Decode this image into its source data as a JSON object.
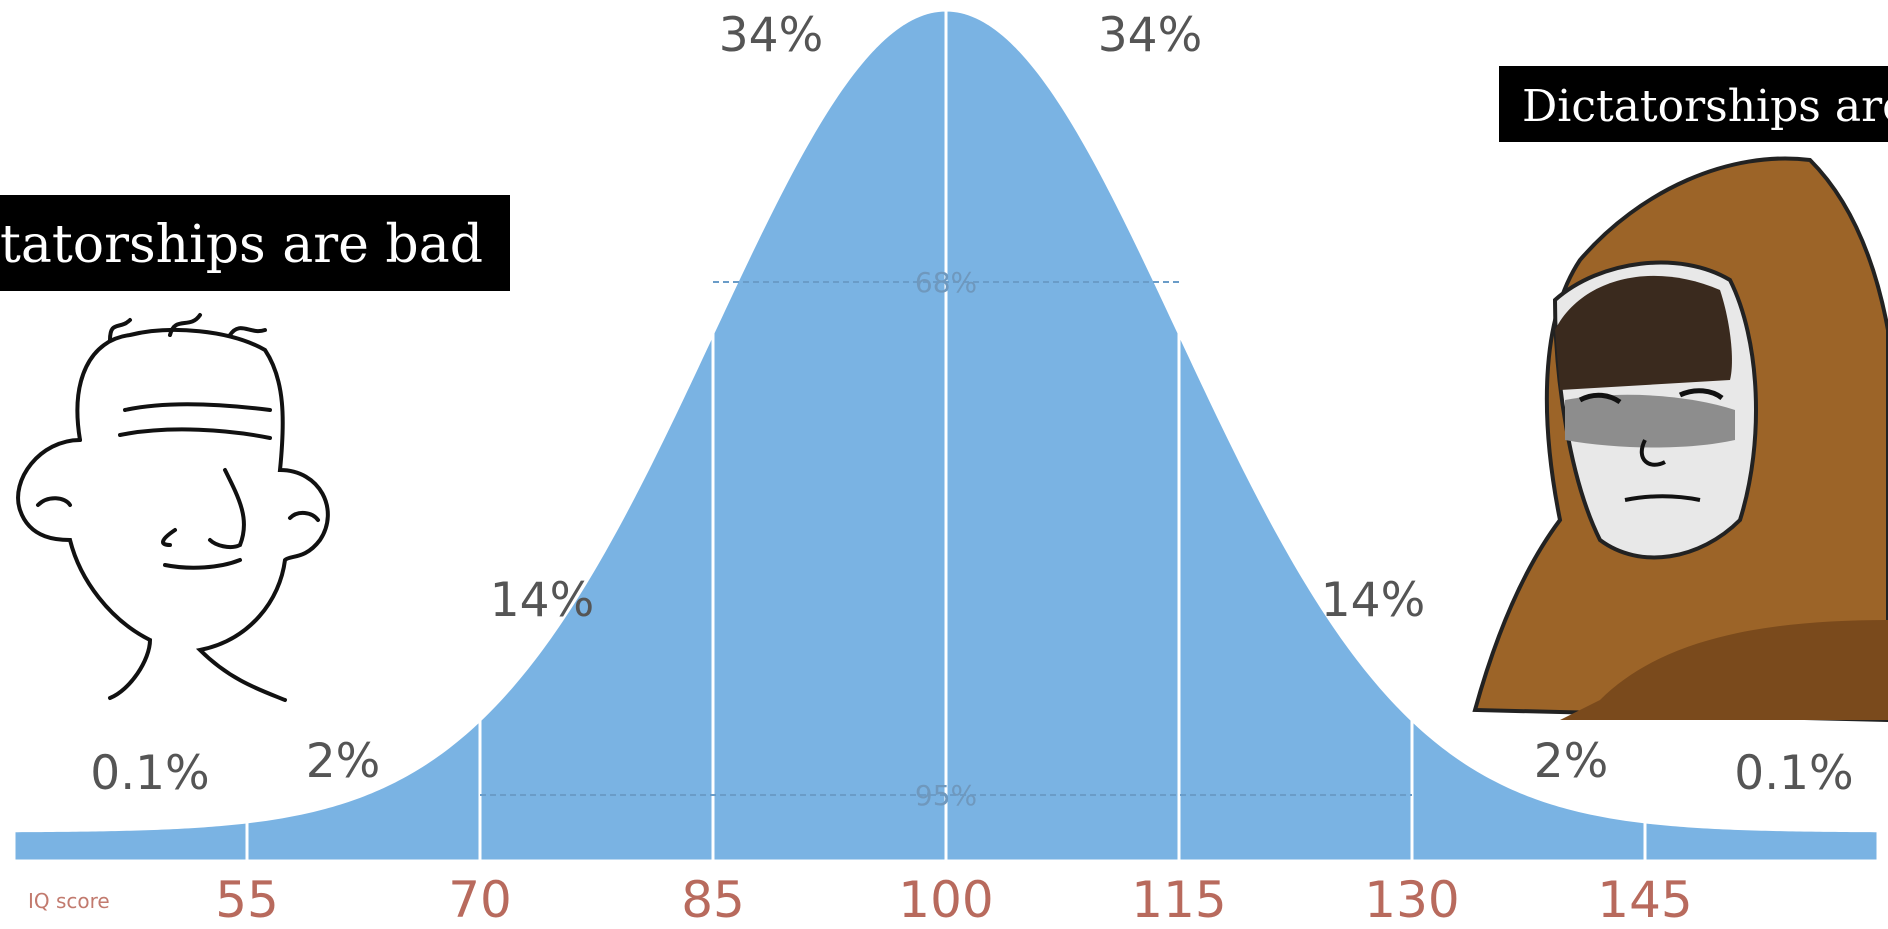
{
  "chart_data": {
    "type": "bell",
    "values": [
      0.1,
      2,
      14,
      34,
      34,
      14,
      2,
      0.1
    ],
    "value_labels": [
      "0.1%",
      "2%",
      "14%",
      "34%",
      "34%",
      "14%",
      "2%",
      "0.1%"
    ],
    "color": "#7ab3e3",
    "xlim": [
      40,
      160
    ],
    "xticks": [
      55,
      70,
      85,
      100,
      115,
      130,
      145
    ],
    "xlabel": "IQ score",
    "annotations": [
      "68%",
      "95%"
    ],
    "captions": [
      "tatorships are bad",
      "Dictatorships are"
    ]
  }
}
